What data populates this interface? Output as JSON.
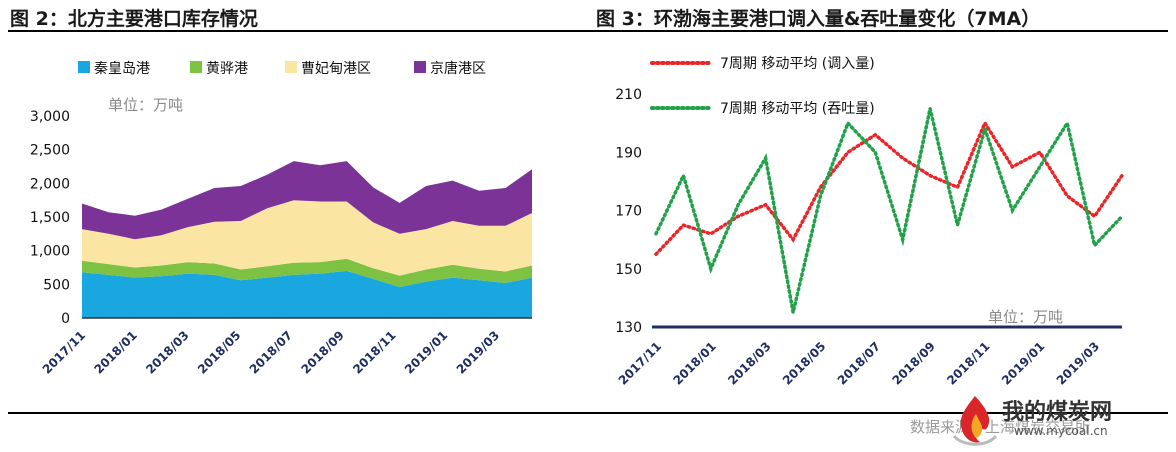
{
  "titles": {
    "left": "图 2：北方主要港口库存情况",
    "right": "图 3：环渤海主要港口调入量&吞吐量变化（7MA）"
  },
  "source": "数据来源：上海煤炭交易所",
  "logo": {
    "name": "我的煤炭网",
    "url": "www.mycoal.cn",
    "icon": "flame-icon"
  },
  "chart_data": [
    {
      "type": "area",
      "stacked": true,
      "title": "",
      "unit_note": "单位：万吨",
      "ylim": [
        0,
        3000
      ],
      "yticks": [
        "0",
        "500",
        "1,000",
        "1,500",
        "2,000",
        "2,500",
        "3,000"
      ],
      "x_labels": [
        "2017/11",
        "2018/01",
        "2018/03",
        "2018/05",
        "2018/07",
        "2018/09",
        "2018/11",
        "2019/01",
        "2019/03"
      ],
      "legend_position": "top",
      "x": [
        "2017/11",
        "2017/12",
        "2018/01",
        "2018/02",
        "2018/03",
        "2018/04",
        "2018/05",
        "2018/06",
        "2018/07",
        "2018/08",
        "2018/09",
        "2018/10",
        "2018/11",
        "2018/12",
        "2019/01",
        "2019/02",
        "2019/03",
        "2019/04"
      ],
      "series": [
        {
          "name": "秦皇岛港",
          "color": "#1aa7e0",
          "values": [
            680,
            640,
            600,
            620,
            660,
            640,
            560,
            600,
            640,
            660,
            700,
            580,
            460,
            540,
            600,
            560,
            520,
            600
          ]
        },
        {
          "name": "黄骅港",
          "color": "#7dc242",
          "values": [
            170,
            160,
            150,
            160,
            170,
            170,
            160,
            170,
            180,
            170,
            180,
            160,
            170,
            180,
            190,
            170,
            170,
            180
          ]
        },
        {
          "name": "曹妃甸港区",
          "color": "#fbe5a2",
          "values": [
            470,
            450,
            420,
            450,
            520,
            620,
            720,
            860,
            930,
            900,
            850,
            680,
            620,
            600,
            650,
            640,
            680,
            780
          ]
        },
        {
          "name": "京唐港区",
          "color": "#7b3397",
          "values": [
            380,
            320,
            350,
            380,
            420,
            500,
            520,
            500,
            580,
            540,
            600,
            520,
            460,
            640,
            600,
            520,
            560,
            650
          ]
        }
      ]
    },
    {
      "type": "line",
      "title": "",
      "unit_note": "单位：万吨",
      "ylim": [
        130,
        210
      ],
      "yticks": [
        "130",
        "150",
        "170",
        "190",
        "210"
      ],
      "x_labels": [
        "2017/11",
        "2018/01",
        "2018/03",
        "2018/05",
        "2018/07",
        "2018/09",
        "2018/11",
        "2019/01",
        "2019/03"
      ],
      "legend_position": "top-left",
      "x": [
        "2017/11",
        "2017/12",
        "2018/01",
        "2018/02",
        "2018/03",
        "2018/04",
        "2018/05",
        "2018/06",
        "2018/07",
        "2018/08",
        "2018/09",
        "2018/10",
        "2018/11",
        "2018/12",
        "2019/01",
        "2019/02",
        "2019/03",
        "2019/04"
      ],
      "series": [
        {
          "name": "7周期 移动平均 (调入量)",
          "color": "#e8262a",
          "values": [
            155,
            165,
            162,
            168,
            172,
            160,
            178,
            190,
            196,
            188,
            182,
            178,
            200,
            185,
            190,
            175,
            168,
            182
          ]
        },
        {
          "name": "7周期 移动平均 (吞吐量)",
          "color": "#23a14a",
          "values": [
            162,
            182,
            150,
            172,
            188,
            135,
            175,
            200,
            190,
            160,
            205,
            165,
            198,
            170,
            185,
            200,
            158,
            168
          ]
        }
      ]
    }
  ]
}
